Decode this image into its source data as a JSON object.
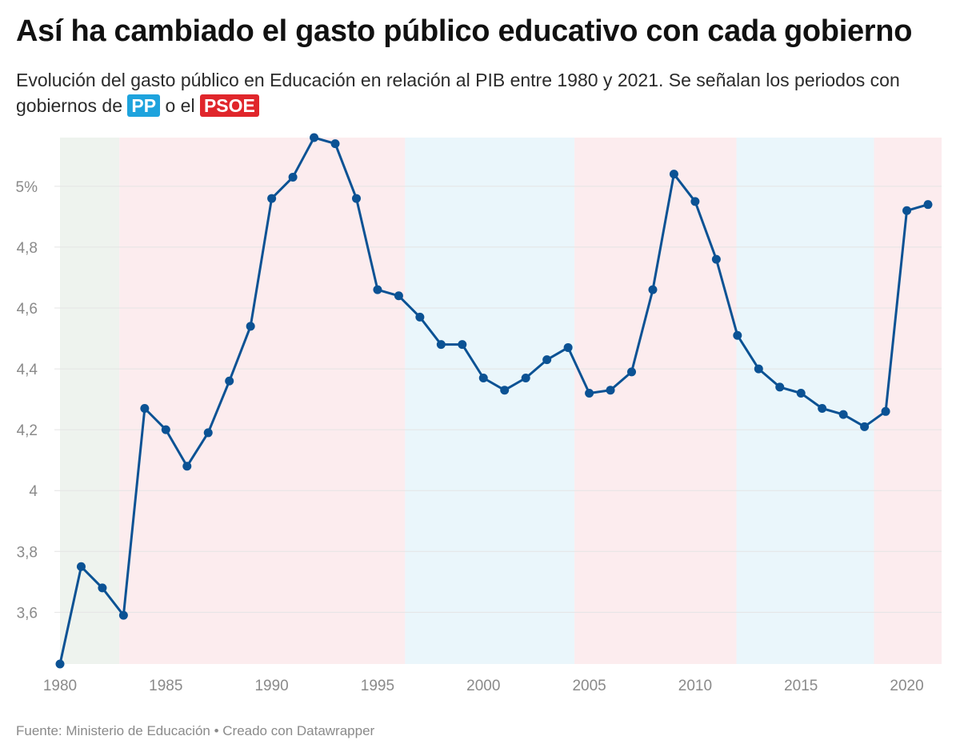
{
  "header": {
    "title": "Así ha cambiado el gasto público educativo con cada gobierno",
    "subtitle_before": "Evolución del gasto público en Educación en relación al PIB entre 1980 y 2021. Se señalan los periodos con gobiernos de",
    "subtitle_middle": "o el",
    "pp_label": "PP",
    "psoe_label": "PSOE"
  },
  "footer": {
    "source": "Fuente: Ministerio de Educación • Creado con Datawrapper"
  },
  "colors": {
    "line": "#0b5294",
    "pp": "#1ea3dd",
    "psoe": "#e0262b",
    "pp_band": "#eaf6fb",
    "psoe_band": "#fcecee",
    "other_band": "#eef3ee",
    "grid": "#e4e4e4"
  },
  "chart_data": {
    "type": "line",
    "title": "Así ha cambiado el gasto público educativo con cada gobierno",
    "xlabel": "",
    "ylabel": "",
    "xlim": [
      1980,
      2021
    ],
    "ylim": [
      3.43,
      5.16
    ],
    "x_ticks": [
      1980,
      1985,
      1990,
      1995,
      2000,
      2005,
      2010,
      2015,
      2020
    ],
    "x_tick_labels": [
      "1980",
      "1985",
      "1990",
      "1995",
      "2000",
      "2005",
      "2010",
      "2015",
      "2020"
    ],
    "y_ticks": [
      3.6,
      3.8,
      4,
      4.2,
      4.4,
      4.6,
      4.8,
      5
    ],
    "y_tick_labels": [
      "3,6",
      "3,8",
      "4",
      "4,2",
      "4,4",
      "4,6",
      "4,8",
      "5%"
    ],
    "grid": true,
    "periods": [
      {
        "party": "other",
        "start": 1980,
        "end": 1982.8
      },
      {
        "party": "PSOE",
        "start": 1982.8,
        "end": 1996.3
      },
      {
        "party": "PP",
        "start": 1996.3,
        "end": 2004.3
      },
      {
        "party": "PSOE",
        "start": 2004.3,
        "end": 2011.95
      },
      {
        "party": "PP",
        "start": 2011.95,
        "end": 2018.45
      },
      {
        "party": "PSOE",
        "start": 2018.45,
        "end": 2021.65
      }
    ],
    "x": [
      1980,
      1981,
      1982,
      1983,
      1984,
      1985,
      1986,
      1987,
      1988,
      1989,
      1990,
      1991,
      1992,
      1993,
      1994,
      1995,
      1996,
      1997,
      1998,
      1999,
      2000,
      2001,
      2002,
      2003,
      2004,
      2005,
      2006,
      2007,
      2008,
      2009,
      2010,
      2011,
      2012,
      2013,
      2014,
      2015,
      2016,
      2017,
      2018,
      2019,
      2020,
      2021
    ],
    "series": [
      {
        "values": [
          3.43,
          3.75,
          3.68,
          3.59,
          4.27,
          4.2,
          4.08,
          4.19,
          4.36,
          4.54,
          4.96,
          5.03,
          5.16,
          5.14,
          4.96,
          4.66,
          4.64,
          4.57,
          4.48,
          4.48,
          4.37,
          4.33,
          4.37,
          4.43,
          4.47,
          4.32,
          4.33,
          4.39,
          4.66,
          5.04,
          4.95,
          4.76,
          4.51,
          4.4,
          4.34,
          4.32,
          4.27,
          4.25,
          4.21,
          4.26,
          4.92,
          4.94
        ]
      }
    ]
  }
}
